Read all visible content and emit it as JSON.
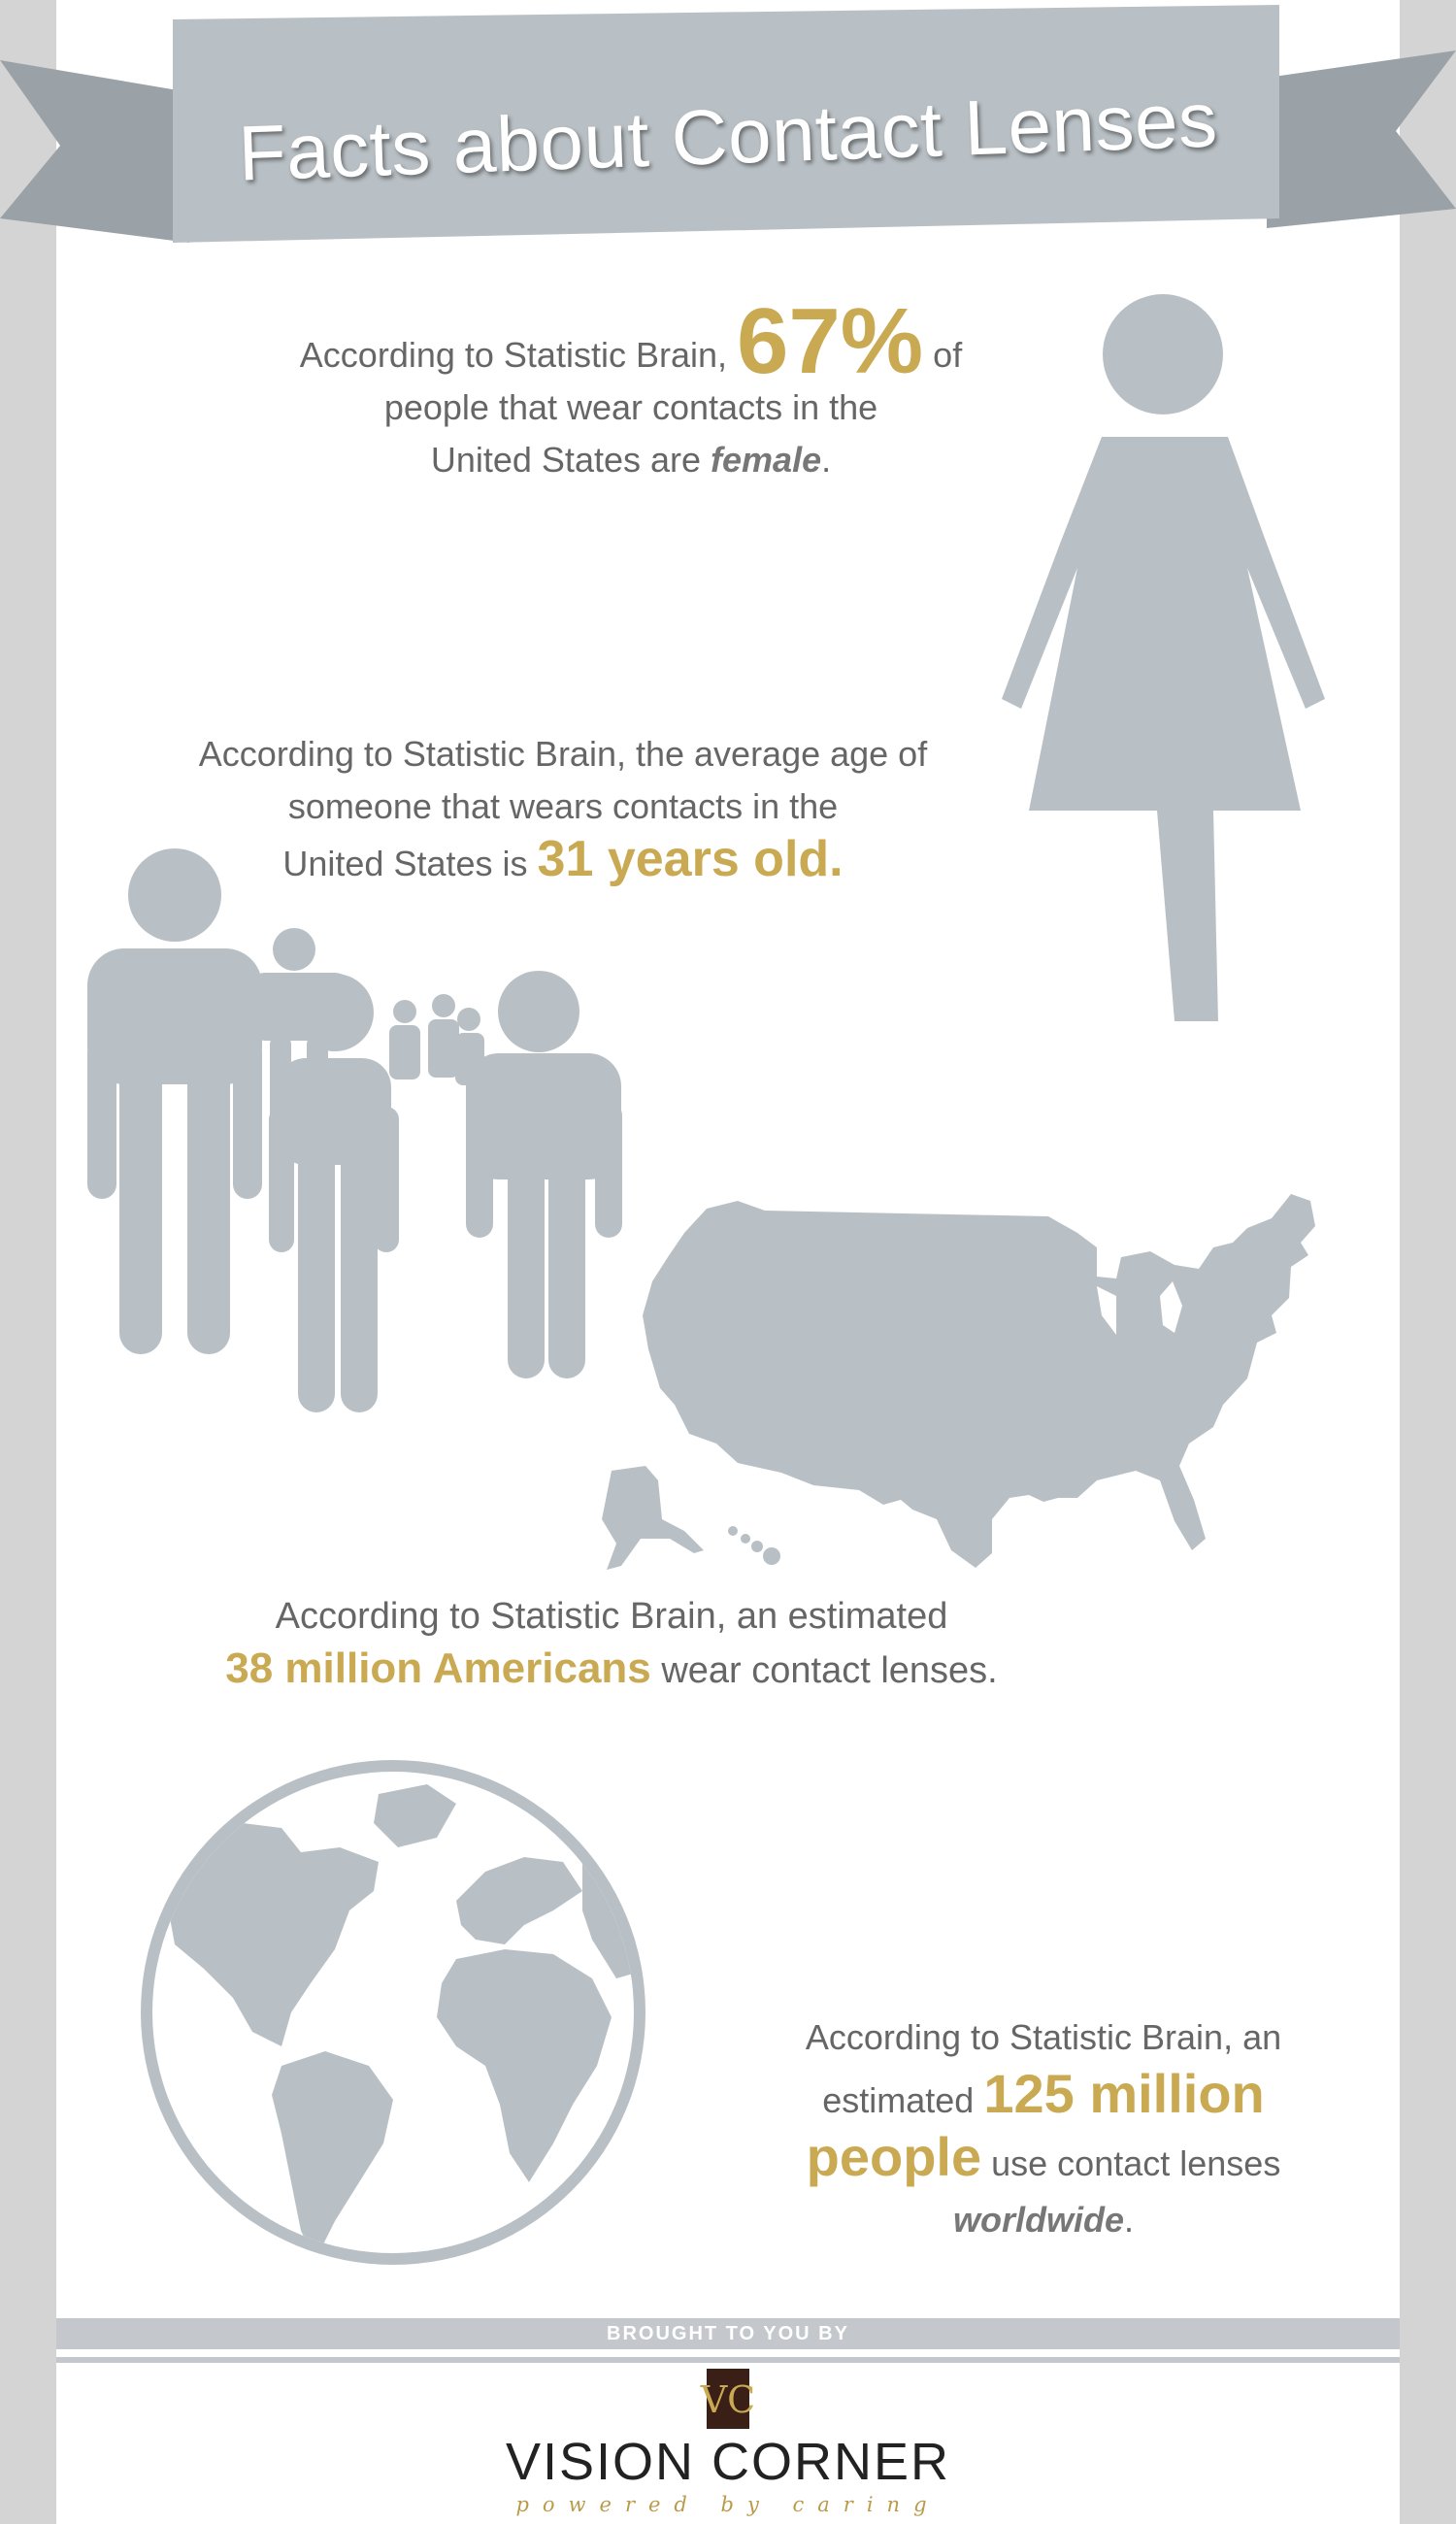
{
  "title": "Facts about Contact Lenses",
  "facts": [
    {
      "line1_pre": "According to Statistic Brain,",
      "highlight": "67%",
      "line1_post": "of",
      "line2": "people that wear contacts in the",
      "line3_pre": "United States are",
      "emphasis": "female",
      "line3_post": "."
    },
    {
      "line1": "According to Statistic Brain, the average age of",
      "line2": "someone that wears contacts in the",
      "line3_pre": "United States is",
      "highlight": "31 years old."
    },
    {
      "line1": "According to Statistic Brain, an estimated",
      "highlight": "38 million Americans",
      "line2_post": "wear contact lenses."
    },
    {
      "line1": "According to Statistic Brain, an",
      "line2_pre": "estimated",
      "highlight1": "125 million",
      "highlight2": "people",
      "line3_post": "use contact lenses",
      "emphasis": "worldwide",
      "line4_post": "."
    }
  ],
  "footer": {
    "brought_by": "BROUGHT TO YOU BY",
    "logo_mark": "VC",
    "brand": "VISION CORNER",
    "tagline": "powered by caring"
  },
  "icons": [
    "woman-icon",
    "people-group-icon",
    "usa-map-icon",
    "globe-icon",
    "vision-corner-logo-icon"
  ],
  "colors": {
    "accent_gold": "#c9aa52",
    "icon_gray": "#b9c0c5",
    "text_gray": "#666666",
    "banner_gray": "#b9c0c5",
    "side_gray": "#d4d4d4"
  }
}
